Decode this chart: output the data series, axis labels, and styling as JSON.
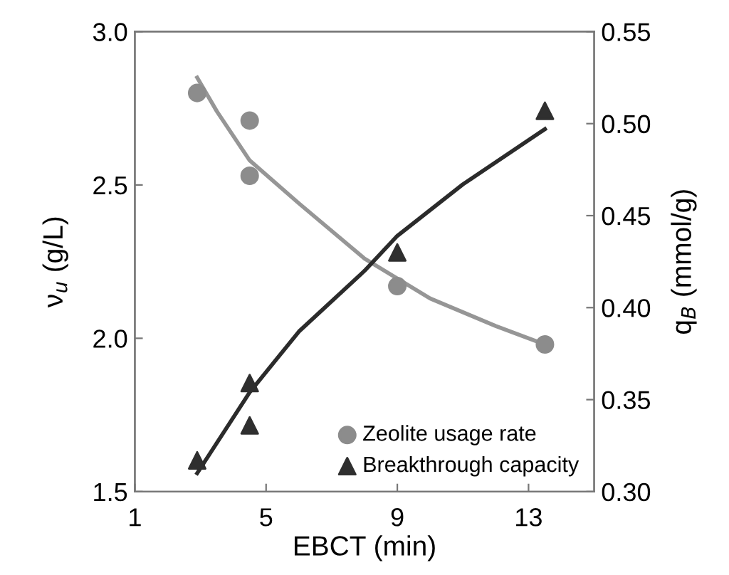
{
  "chart_data": {
    "type": "scatter",
    "xlabel": "EBCT (min)",
    "ylabel": "ν$_{u}$ (g/L)",
    "y2label": "q$_{B}$ (mmol/g)",
    "xlim": [
      1,
      15
    ],
    "xticks": [
      1,
      5,
      9,
      13
    ],
    "ylim": [
      1.5,
      3.0
    ],
    "yticks": [
      {
        "value": 1.5,
        "label": "1.5"
      },
      {
        "value": 2.0,
        "label": "2.0"
      },
      {
        "value": 2.5,
        "label": "2.5"
      },
      {
        "value": 3.0,
        "label": "3.0"
      }
    ],
    "y2lim": [
      0.3,
      0.55
    ],
    "y2ticks": [
      {
        "value": 0.3,
        "label": "0.30"
      },
      {
        "value": 0.35,
        "label": "0.35"
      },
      {
        "value": 0.4,
        "label": "0.40"
      },
      {
        "value": 0.45,
        "label": "0.45"
      },
      {
        "value": 0.5,
        "label": "0.50"
      },
      {
        "value": 0.55,
        "label": "0.55"
      }
    ],
    "grid": false,
    "legend": "bottom right",
    "series": [
      {
        "type": "line",
        "color": "#969696",
        "marker": "none",
        "x": [
          2.9,
          3.5,
          4.5,
          6,
          8,
          10,
          12,
          13.5
        ],
        "values": [
          2.85,
          2.74,
          2.58,
          2.44,
          2.26,
          2.13,
          2.04,
          1.98
        ]
      },
      {
        "type": "line",
        "axis": "y2",
        "color": "#2b2b2b",
        "marker": "none",
        "x": [
          2.9,
          4.5,
          6,
          8,
          9,
          11,
          13.5
        ],
        "values": [
          0.31,
          0.354,
          0.387,
          0.42,
          0.439,
          0.467,
          0.497
        ]
      },
      {
        "name": "Zeolite usage rate",
        "color": "#8c8c8c",
        "marker": "circle",
        "x": [
          2.9,
          4.5,
          4.5,
          9,
          13.5
        ],
        "values": [
          2.8,
          2.71,
          2.53,
          2.17,
          1.98
        ]
      },
      {
        "name": "Breakthrough capacity",
        "axis": "y2",
        "color": "#2f2f2f",
        "marker": "triangle",
        "x": [
          2.9,
          4.5,
          4.5,
          9,
          13.5
        ],
        "values": [
          0.317,
          0.359,
          0.336,
          0.43,
          0.507
        ]
      }
    ]
  }
}
